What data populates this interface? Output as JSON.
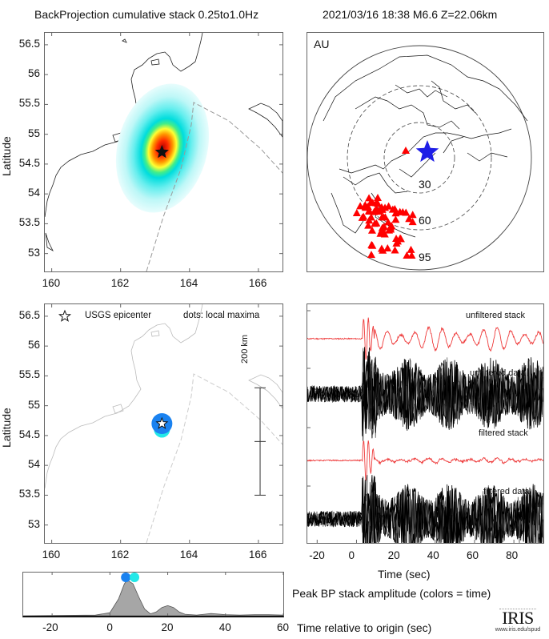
{
  "header": {
    "left_title": "BackProjection cumulative stack 0.25to1.0Hz",
    "right_title": "2021/03/16 18:38  M6.6  Z=22.06km"
  },
  "colors": {
    "stack_red": "#ee3b3b",
    "data_black": "#000000",
    "station_red": "#ff0000",
    "epicenter_blue": "#1e1ee6",
    "dot_early": "#1a82f0",
    "dot_late": "#22e8e8",
    "amplitude_fill": "#a6a6a6"
  },
  "chart_data": [
    {
      "type": "heatmap",
      "name": "cumulative-stack-map",
      "ylabel": "Latitude",
      "xlim": [
        159.8,
        166.7
      ],
      "ylim": [
        52.7,
        56.7
      ],
      "xticks": [
        "160",
        "162",
        "164",
        "166"
      ],
      "yticks": [
        "56.5",
        "56",
        "55.5",
        "55",
        "54.5",
        "54",
        "53.5",
        "53"
      ],
      "peak": {
        "lon": 163.2,
        "lat": 54.7
      },
      "epicenter": {
        "lon": 163.2,
        "lat": 54.7
      }
    },
    {
      "type": "scatter",
      "name": "station-map",
      "region_label": "AU",
      "ring_labels": [
        "30",
        "60",
        "95"
      ],
      "epicenter_marker": "blue-star",
      "station_marker": "red-triangle"
    },
    {
      "type": "scatter",
      "name": "local-maxima-map",
      "ylabel": "Latitude",
      "xlim": [
        159.8,
        166.7
      ],
      "ylim": [
        52.7,
        56.7
      ],
      "xticks": [
        "160",
        "162",
        "164",
        "166"
      ],
      "yticks": [
        "56.5",
        "56",
        "55.5",
        "55",
        "54.5",
        "54",
        "53.5",
        "53"
      ],
      "legend_star": "USGS epicenter",
      "legend_dots": "dots: local maxima",
      "scale_label": "200 km",
      "scale_bar": {
        "lon": 166.05,
        "lat_top": 55.3,
        "lat_mid": 54.4,
        "lat_bottom": 53.5
      },
      "dots": [
        {
          "lon": 163.2,
          "lat": 54.7,
          "time": 5.5
        },
        {
          "lon": 163.2,
          "lat": 54.6,
          "time": 8.5
        }
      ],
      "epicenter": {
        "lon": 163.2,
        "lat": 54.7
      }
    },
    {
      "type": "line",
      "name": "waveforms",
      "xlabel": "Time (sec)",
      "xlim": [
        -25,
        95
      ],
      "xticks": [
        "-20",
        "0",
        "20",
        "40",
        "60",
        "80"
      ],
      "traces": [
        "unfiltered stack",
        "unfiltered data",
        "filtered stack",
        "filtered data"
      ]
    },
    {
      "type": "area",
      "name": "peak-amplitude",
      "title": "Peak BP stack amplitude (colors = time)",
      "xlabel": "Time relative to origin (sec)",
      "xlim": [
        -30,
        60
      ],
      "xticks": [
        "-20",
        "0",
        "20",
        "40",
        "60"
      ],
      "x": [
        -30,
        -5,
        0,
        3,
        5,
        6,
        8,
        10,
        12,
        14,
        16,
        18,
        20,
        22,
        24,
        26,
        30,
        35,
        40,
        45,
        50,
        55,
        60
      ],
      "values": [
        0,
        0.02,
        0.08,
        0.45,
        0.85,
        0.95,
        0.85,
        0.5,
        0.18,
        0.05,
        0.1,
        0.22,
        0.27,
        0.22,
        0.1,
        0.04,
        0.02,
        0.06,
        0.03,
        0.02,
        0.03,
        0.03,
        0.02
      ],
      "ylim": [
        0,
        1
      ],
      "peak_dots": [
        {
          "x": 5.5,
          "y": 0.92
        },
        {
          "x": 8.5,
          "y": 0.92
        }
      ]
    }
  ],
  "logo": {
    "text": "IRIS",
    "url_text": "www.iris.edu/spud"
  }
}
